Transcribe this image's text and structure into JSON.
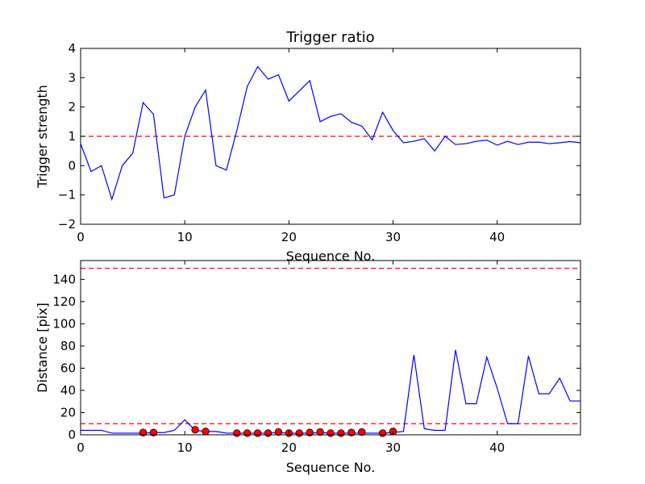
{
  "chart_data": [
    {
      "type": "line",
      "title": "Trigger ratio",
      "xlabel": "Sequence No.",
      "ylabel": "Trigger strength",
      "xlim": [
        0,
        48
      ],
      "ylim": [
        -2,
        4
      ],
      "xticks": [
        0,
        10,
        20,
        30,
        40
      ],
      "yticks": [
        -2,
        -1,
        0,
        1,
        2,
        3,
        4
      ],
      "xtick_labels": [
        "0",
        "10",
        "20",
        "30",
        "40"
      ],
      "ytick_labels": [
        "−2",
        "−1",
        "0",
        "1",
        "2",
        "3",
        "4"
      ],
      "grid": false,
      "colors": {
        "series": "#0000ff",
        "reference": "#ff0000"
      },
      "series": [
        {
          "x": [
            0,
            1,
            2,
            3,
            4,
            5,
            6,
            7,
            8,
            9,
            10,
            11,
            12,
            13,
            14,
            15,
            16,
            17,
            18,
            19,
            20,
            21,
            22,
            23,
            24,
            25,
            26,
            27,
            28,
            29,
            30,
            31,
            32,
            33,
            34,
            35,
            36,
            37,
            38,
            39,
            40,
            41,
            42,
            43,
            44,
            45,
            46,
            47,
            48
          ],
          "values": [
            0.75,
            -0.2,
            0.0,
            -1.15,
            0.0,
            0.42,
            2.15,
            1.75,
            -1.1,
            -1.0,
            1.0,
            2.0,
            2.58,
            0.0,
            -0.15,
            1.2,
            2.7,
            3.38,
            2.95,
            3.1,
            2.2,
            2.55,
            2.9,
            1.5,
            1.68,
            1.77,
            1.48,
            1.35,
            0.88,
            1.82,
            1.2,
            0.78,
            0.83,
            0.92,
            0.5,
            1.0,
            0.72,
            0.75,
            0.83,
            0.87,
            0.7,
            0.83,
            0.72,
            0.8,
            0.8,
            0.75,
            0.78,
            0.82,
            0.78
          ]
        }
      ],
      "reference_lines": [
        1
      ]
    },
    {
      "type": "line",
      "title": "",
      "xlabel": "Sequence No.",
      "ylabel": "Distance [pix]",
      "xlim": [
        0,
        48
      ],
      "ylim": [
        0,
        157
      ],
      "xticks": [
        0,
        10,
        20,
        30,
        40
      ],
      "yticks": [
        0,
        20,
        40,
        60,
        80,
        100,
        120,
        140
      ],
      "xtick_labels": [
        "0",
        "10",
        "20",
        "30",
        "40"
      ],
      "ytick_labels": [
        "0",
        "20",
        "40",
        "60",
        "80",
        "100",
        "120",
        "140"
      ],
      "grid": false,
      "colors": {
        "series": "#0000ff",
        "reference": "#ff0000",
        "markers": "#ff0000"
      },
      "series": [
        {
          "x": [
            0,
            1,
            2,
            3,
            4,
            5,
            6,
            7,
            8,
            9,
            10,
            11,
            12,
            13,
            14,
            15,
            16,
            17,
            18,
            19,
            20,
            21,
            22,
            23,
            24,
            25,
            26,
            27,
            28,
            29,
            30,
            31,
            32,
            33,
            34,
            35,
            36,
            37,
            38,
            39,
            40,
            41,
            42,
            43,
            44,
            45,
            46,
            47,
            48
          ],
          "values": [
            4,
            4,
            4,
            1.5,
            1.5,
            1.5,
            1.5,
            2,
            2,
            4,
            13.5,
            4,
            3,
            3,
            1.5,
            1.5,
            1.5,
            1.5,
            1.5,
            2,
            1.5,
            1.5,
            1.5,
            2,
            1.5,
            1.5,
            1.5,
            1.5,
            1.5,
            1.5,
            2,
            3,
            72,
            5.5,
            4,
            4,
            76.5,
            28,
            28,
            70,
            42,
            10,
            10,
            71,
            37,
            37,
            51,
            30.5,
            30.5
          ]
        }
      ],
      "markers": {
        "x": [
          6,
          7,
          11,
          12,
          15,
          16,
          17,
          18,
          19,
          20,
          21,
          22,
          23,
          24,
          25,
          26,
          27,
          29,
          30
        ],
        "values": [
          2,
          2,
          4.5,
          3,
          1.5,
          1.5,
          1.5,
          1.5,
          2.5,
          1.5,
          1.5,
          2,
          2.5,
          1.5,
          1.5,
          2,
          2.5,
          1.5,
          3
        ]
      },
      "reference_lines": [
        10,
        150
      ]
    }
  ]
}
